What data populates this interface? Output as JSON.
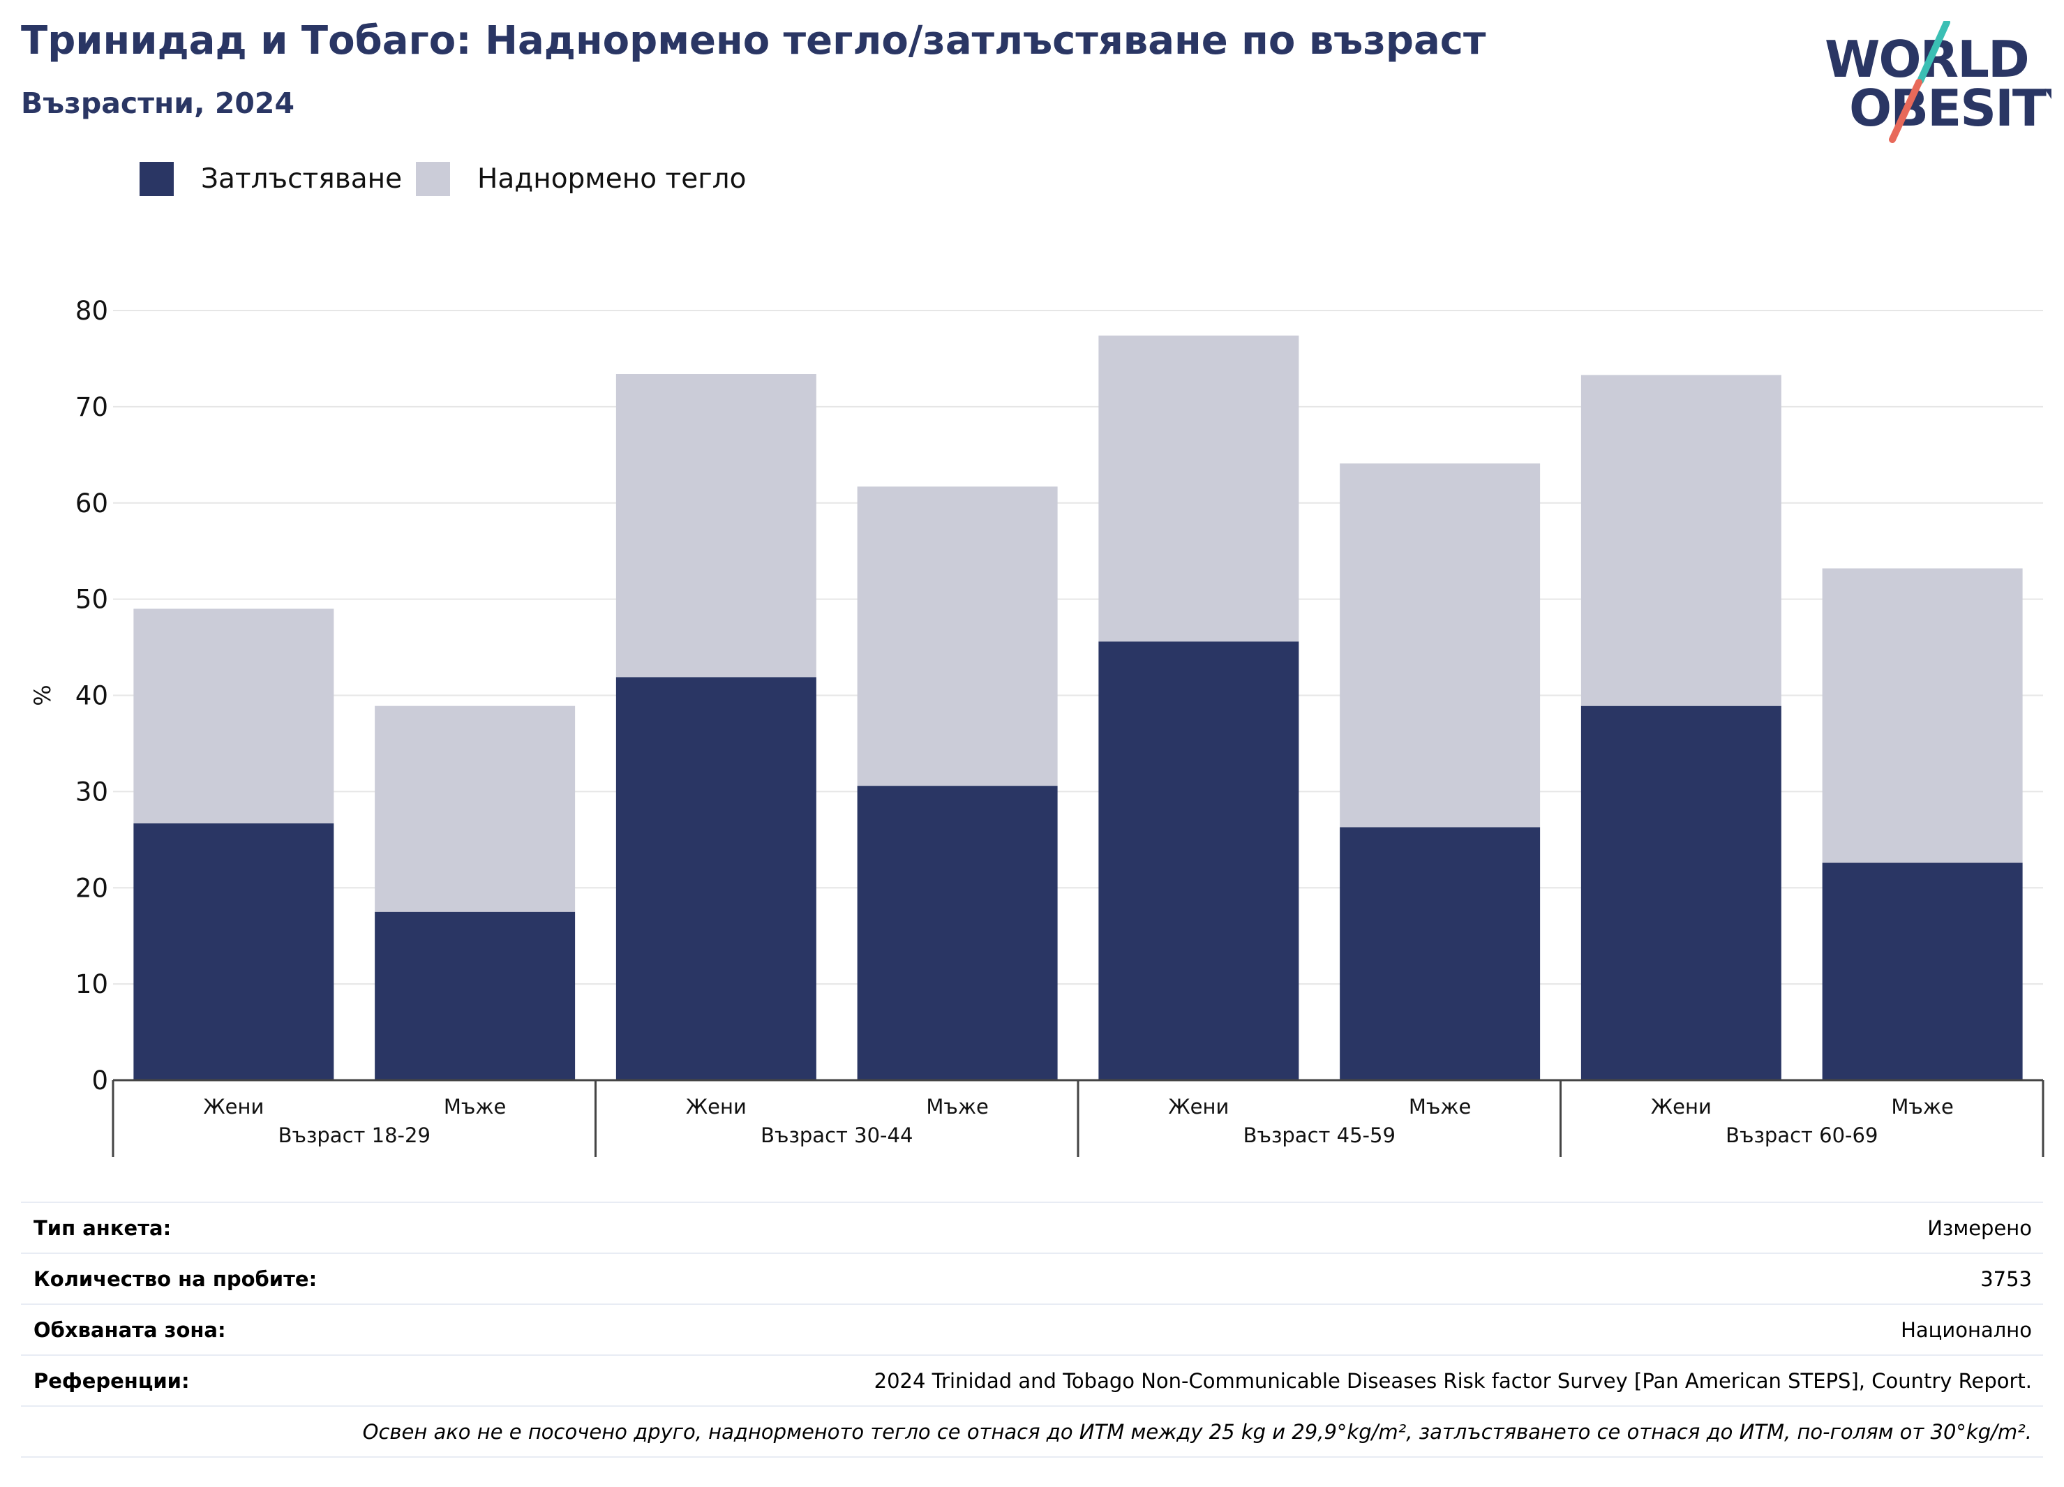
{
  "header": {
    "title": "Тринидад и Тобаго: Наднормено тегло/затлъстяване по възраст",
    "subtitle": "Възрастни, 2024"
  },
  "logo": {
    "line1": "WORLD",
    "line2": "OBESITY",
    "colors": {
      "text": "#2a3664",
      "slash_top": "#3bbfb4",
      "slash_bottom": "#e8695a"
    }
  },
  "legend": [
    {
      "label": "Затлъстяване",
      "color": "#2a3664"
    },
    {
      "label": "Наднормено тегло",
      "color": "#cbccd8"
    }
  ],
  "chart_data": {
    "type": "bar",
    "stacked": true,
    "ylabel": "%",
    "ylim": [
      0,
      80
    ],
    "yticks": [
      0,
      10,
      20,
      30,
      40,
      50,
      60,
      70,
      80
    ],
    "grid": true,
    "legend_position": "top-left",
    "groups": [
      "Възраст 18-29",
      "Възраст 30-44",
      "Възраст 45-59",
      "Възраст 60-69"
    ],
    "categories": [
      "Жени",
      "Мъже",
      "Жени",
      "Мъже",
      "Жени",
      "Мъже",
      "Жени",
      "Мъже"
    ],
    "series": [
      {
        "name": "Затлъстяване",
        "color": "#2a3664",
        "values": [
          26.7,
          17.5,
          41.9,
          30.6,
          45.6,
          26.3,
          38.9,
          22.6
        ]
      },
      {
        "name": "Наднормено тегло",
        "color": "#cbccd8",
        "values": [
          22.3,
          21.4,
          31.5,
          31.1,
          31.8,
          37.8,
          34.4,
          30.6
        ]
      }
    ]
  },
  "info": {
    "rows": [
      {
        "key": "Тип анкета:",
        "value": "Измерено"
      },
      {
        "key": "Количество на пробите:",
        "value": "3753"
      },
      {
        "key": "Обхваната зона:",
        "value": "Национално"
      },
      {
        "key": "Референции:",
        "value": "2024 Trinidad and Tobago Non-Communicable Diseases Risk factor Survey [Pan American STEPS], Country Report."
      }
    ],
    "note": "Освен ако не е посочено друго, наднорменото тегло се отнася до ИТМ между 25 kg и 29,9°kg/m², затлъстяването се отнася до ИТМ, по-голям от 30°kg/m²."
  }
}
